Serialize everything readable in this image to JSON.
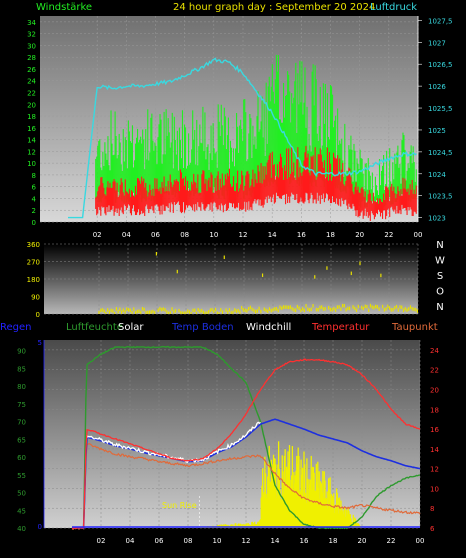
{
  "header": {
    "left": "Windstärke",
    "center": "24 hour graph day : September 20 2024",
    "right": "Luftdruck"
  },
  "x_ticks": [
    "02",
    "04",
    "06",
    "08",
    "10",
    "12",
    "14",
    "16",
    "18",
    "20",
    "22",
    "00"
  ],
  "colors": {
    "wind_avg": "#ff1a1a",
    "wind_gust": "#22ee22",
    "pressure": "#39d9e0",
    "direction": "#e8e000",
    "humidity": "#2e9a2e",
    "temperature": "#ff3030",
    "dewpoint": "#e06a3a",
    "soil": "#1d2fe0",
    "windchill": "#ffffff",
    "solar": "#f0f000",
    "rain": "#2222ff"
  },
  "chart_data": [
    {
      "type": "line",
      "left_axis": {
        "ticks": [
          "0",
          "2",
          "4",
          "6",
          "8",
          "10",
          "12",
          "14",
          "16",
          "18",
          "20",
          "22",
          "24",
          "26",
          "28",
          "30",
          "32",
          "34"
        ],
        "ylim": [
          0,
          35
        ]
      },
      "right_axis": {
        "ticks": [
          "1023",
          "1023,5",
          "1024",
          "1024,5",
          "1025",
          "1025,5",
          "1026",
          "1026,5",
          "1027",
          "1027,5"
        ],
        "ylim": [
          1022.9,
          1027.6
        ]
      },
      "series": [
        {
          "name": "Windstärke",
          "axis": "left",
          "x": [
            0,
            1,
            2,
            3,
            4,
            5,
            6,
            7,
            8,
            9,
            10,
            11,
            12,
            13,
            14,
            15,
            16,
            17,
            18,
            19,
            20,
            21,
            22,
            23,
            24
          ],
          "avg": [
            0,
            0,
            6,
            6,
            6,
            6,
            6,
            7,
            7,
            7,
            7,
            7,
            7,
            8,
            10,
            10,
            10,
            10,
            10,
            8,
            5,
            4,
            5,
            6,
            6
          ],
          "gust": [
            0,
            0,
            12,
            14,
            14,
            14,
            14,
            14,
            15,
            14,
            15,
            14,
            15,
            16,
            20,
            22,
            21,
            19,
            17,
            12,
            9,
            7,
            9,
            11,
            10
          ]
        },
        {
          "name": "Luftdruck",
          "axis": "right",
          "x": [
            0,
            1,
            2,
            3,
            4,
            5,
            6,
            7,
            8,
            9,
            10,
            11,
            12,
            13,
            14,
            15,
            16,
            17,
            18,
            19,
            20,
            21,
            22,
            23,
            24
          ],
          "values": [
            1023,
            1023,
            1026.0,
            1025.95,
            1026.0,
            1026.0,
            1026.05,
            1026.1,
            1026.25,
            1026.4,
            1026.6,
            1026.55,
            1026.3,
            1025.85,
            1025.4,
            1024.8,
            1024.2,
            1024.0,
            1024.0,
            1024.0,
            1024.05,
            1024.2,
            1024.35,
            1024.45,
            1024.45
          ]
        }
      ]
    },
    {
      "type": "line",
      "right_labels": [
        "N",
        "W",
        "S",
        "O",
        "N"
      ],
      "left_axis": {
        "ticks": [
          "0",
          "90",
          "180",
          "270",
          "360"
        ],
        "ylim": [
          0,
          360
        ]
      },
      "series": [
        {
          "name": "Windrichtung",
          "x": [
            2,
            4,
            6,
            8,
            10,
            12,
            14,
            16,
            18,
            20,
            22,
            24
          ],
          "values": [
            20,
            25,
            25,
            20,
            20,
            30,
            35,
            40,
            40,
            40,
            40,
            30
          ]
        }
      ]
    },
    {
      "type": "line",
      "legend": [
        "Regen",
        "Luftfeuchte",
        "Solar",
        "Temp Boden",
        "Windchill",
        "Temperatur",
        "Taupunkt"
      ],
      "left_axis": {
        "ticks": [
          "40",
          "45",
          "50",
          "55",
          "60",
          "65",
          "70",
          "75",
          "80",
          "85",
          "90"
        ],
        "ylim": [
          40,
          93
        ]
      },
      "right_axis": {
        "ticks": [
          "6",
          "8",
          "10",
          "12",
          "14",
          "16",
          "18",
          "20",
          "22",
          "24"
        ],
        "ylim": [
          6,
          25
        ]
      },
      "left_axis_2": {
        "ticks": [
          "0",
          "5"
        ],
        "ylim": [
          0,
          5
        ]
      },
      "annotations": [
        "Sun Rise"
      ],
      "series": [
        {
          "name": "Luftfeuchte",
          "axis": "left",
          "x": [
            0,
            0.8,
            1,
            2,
            3,
            4,
            5,
            6,
            7,
            8,
            9,
            10,
            11,
            12,
            13,
            14,
            15,
            16,
            17,
            18,
            19,
            20,
            21,
            22,
            23,
            24
          ],
          "values": [
            40,
            40,
            86,
            89,
            91,
            91,
            91,
            91,
            91,
            91,
            91,
            89,
            85,
            81,
            70,
            52,
            45,
            41,
            40,
            40,
            40,
            43,
            49,
            52,
            54,
            55
          ]
        },
        {
          "name": "Temperatur",
          "axis": "right",
          "x": [
            0,
            0.8,
            1,
            2,
            3,
            4,
            5,
            6,
            7,
            8,
            9,
            10,
            11,
            12,
            13,
            14,
            15,
            16,
            17,
            18,
            19,
            20,
            21,
            22,
            23,
            24
          ],
          "values": [
            6,
            6,
            16,
            15.5,
            15,
            14.5,
            14,
            13.5,
            13,
            12.8,
            13,
            14,
            15.5,
            17.5,
            20,
            22,
            22.8,
            23,
            23,
            22.8,
            22.5,
            21.5,
            20,
            18,
            16.5,
            16
          ]
        },
        {
          "name": "Taupunkt",
          "axis": "right",
          "x": [
            0,
            0.8,
            1,
            2,
            3,
            4,
            5,
            6,
            7,
            8,
            9,
            10,
            11,
            12,
            13,
            14,
            15,
            16,
            17,
            18,
            19,
            20,
            21,
            22,
            23,
            24
          ],
          "values": [
            6,
            6,
            14.5,
            14,
            13.5,
            13.2,
            13,
            12.7,
            12.5,
            12.3,
            12.5,
            12.8,
            13,
            13.2,
            13.3,
            11.5,
            10,
            9,
            8.5,
            8.2,
            8,
            8.3,
            8,
            7.8,
            7.6,
            7.5
          ]
        },
        {
          "name": "Temp Boden",
          "axis": "right",
          "x": [
            0,
            0.8,
            1,
            2,
            3,
            4,
            5,
            6,
            7,
            8,
            9,
            10,
            11,
            12,
            13,
            14,
            15,
            16,
            17,
            18,
            19,
            20,
            21,
            22,
            23,
            24
          ],
          "values": [
            6,
            6,
            15.2,
            14.8,
            14.3,
            14,
            13.6,
            13.3,
            13,
            12.7,
            12.8,
            13.6,
            14.2,
            15.2,
            16.5,
            17,
            16.5,
            16,
            15.4,
            15,
            14.6,
            13.8,
            13.2,
            12.8,
            12.3,
            12
          ]
        },
        {
          "name": "Windchill",
          "axis": "right",
          "x": [
            1,
            2,
            3,
            4,
            5,
            6,
            7,
            8,
            9,
            10,
            11,
            12,
            13
          ],
          "values": [
            15.3,
            14.9,
            14.4,
            14.1,
            13.7,
            13.4,
            13.1,
            12.8,
            12.9,
            13.7,
            14.4,
            15.4,
            16.8
          ]
        },
        {
          "name": "Solar",
          "axis": "left",
          "x": [
            8.8,
            9,
            10,
            11,
            12,
            13,
            13.2,
            14,
            15,
            16,
            17,
            18,
            19,
            20
          ],
          "values": [
            0,
            0.3,
            0.6,
            1.0,
            0.9,
            1.8,
            21,
            22,
            23,
            20,
            17,
            12,
            6,
            0
          ]
        },
        {
          "name": "Regen",
          "axis": "left2",
          "x": [
            0,
            24
          ],
          "values": [
            0,
            0
          ]
        }
      ]
    }
  ]
}
